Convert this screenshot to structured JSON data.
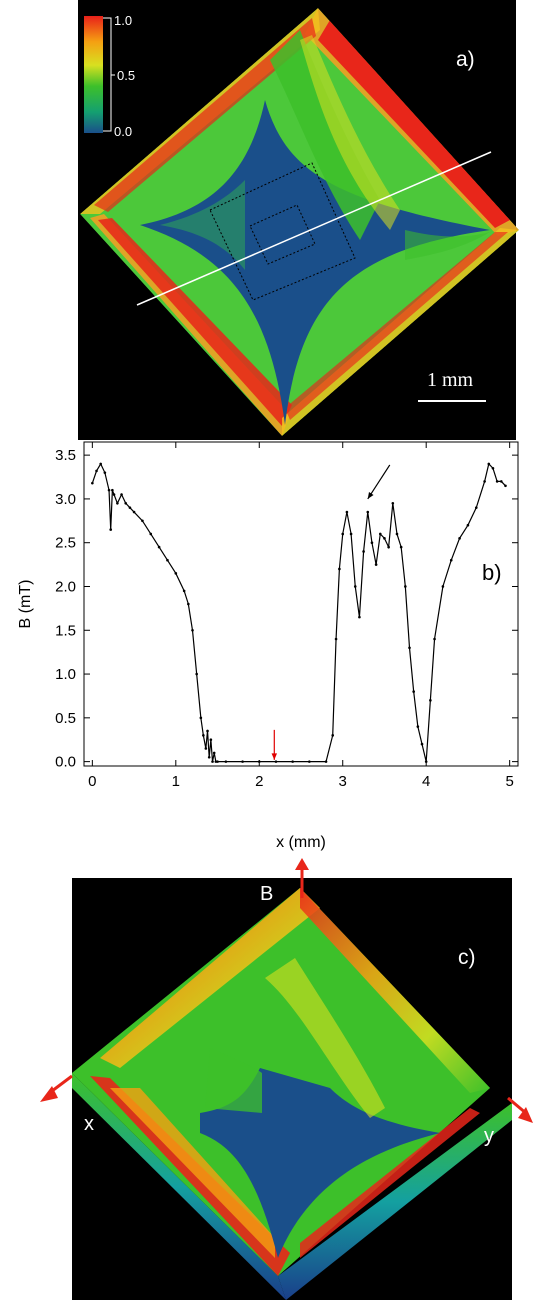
{
  "panel_a": {
    "label": "a)",
    "colorbar_ticks": [
      "1.0",
      "0.5",
      "0.0"
    ],
    "scale_bar_label": "1 mm",
    "colors": {
      "high": "#e8261a",
      "mid": "#27b02a",
      "low": "#1a4f8a",
      "background": "#000000"
    }
  },
  "panel_b": {
    "label": "b)",
    "chart_data": {
      "type": "line",
      "title": "",
      "xlabel": "x (mm)",
      "ylabel": "B (mT)",
      "xlim": [
        -0.1,
        5.1
      ],
      "ylim": [
        -0.05,
        3.65
      ],
      "x_ticks": [
        "0",
        "1",
        "2",
        "3",
        "4",
        "5"
      ],
      "y_ticks": [
        "0.0",
        "0.5",
        "1.0",
        "1.5",
        "2.0",
        "2.5",
        "3.0",
        "3.5"
      ],
      "grid": false,
      "legend": "none",
      "series": [
        {
          "color": "#000000",
          "x": [
            0.0,
            0.05,
            0.1,
            0.15,
            0.2,
            0.22,
            0.24,
            0.26,
            0.3,
            0.35,
            0.4,
            0.45,
            0.5,
            0.6,
            0.7,
            0.8,
            0.9,
            1.0,
            1.1,
            1.15,
            1.2,
            1.25,
            1.3,
            1.33,
            1.36,
            1.38,
            1.4,
            1.42,
            1.44,
            1.46,
            1.48,
            1.5,
            1.6,
            1.8,
            2.0,
            2.2,
            2.4,
            2.6,
            2.8,
            2.88,
            2.92,
            2.96,
            3.0,
            3.05,
            3.1,
            3.15,
            3.2,
            3.25,
            3.3,
            3.35,
            3.4,
            3.45,
            3.5,
            3.55,
            3.6,
            3.65,
            3.7,
            3.75,
            3.8,
            3.85,
            3.9,
            3.95,
            4.0,
            4.05,
            4.1,
            4.2,
            4.3,
            4.4,
            4.5,
            4.6,
            4.7,
            4.75,
            4.8,
            4.85,
            4.9,
            4.95
          ],
          "y": [
            3.18,
            3.32,
            3.4,
            3.3,
            3.1,
            2.65,
            3.1,
            3.05,
            2.95,
            3.05,
            2.95,
            2.9,
            2.85,
            2.75,
            2.6,
            2.45,
            2.3,
            2.15,
            1.95,
            1.8,
            1.5,
            1.0,
            0.5,
            0.3,
            0.15,
            0.35,
            0.05,
            0.25,
            0.0,
            0.1,
            0.0,
            0.0,
            0.0,
            0.0,
            0.0,
            0.0,
            0.0,
            0.0,
            0.0,
            0.3,
            1.4,
            2.2,
            2.6,
            2.85,
            2.6,
            2.0,
            1.65,
            2.4,
            2.85,
            2.5,
            2.25,
            2.6,
            2.55,
            2.45,
            2.95,
            2.6,
            2.45,
            2.0,
            1.3,
            0.8,
            0.4,
            0.2,
            0.0,
            0.7,
            1.4,
            2.0,
            2.3,
            2.55,
            2.7,
            2.9,
            3.2,
            3.4,
            3.35,
            3.2,
            3.2,
            3.15
          ]
        }
      ],
      "annotations": [
        {
          "kind": "arrow",
          "color": "#000000",
          "x": 3.3,
          "y": 3.0
        },
        {
          "kind": "arrow",
          "color": "#e00000",
          "x": 2.18,
          "y": 0.02
        }
      ]
    }
  },
  "panel_c": {
    "label": "c)",
    "axis_labels": {
      "vertical": "B",
      "left": "x",
      "right": "y"
    },
    "arrow_color": "#e8261a"
  }
}
